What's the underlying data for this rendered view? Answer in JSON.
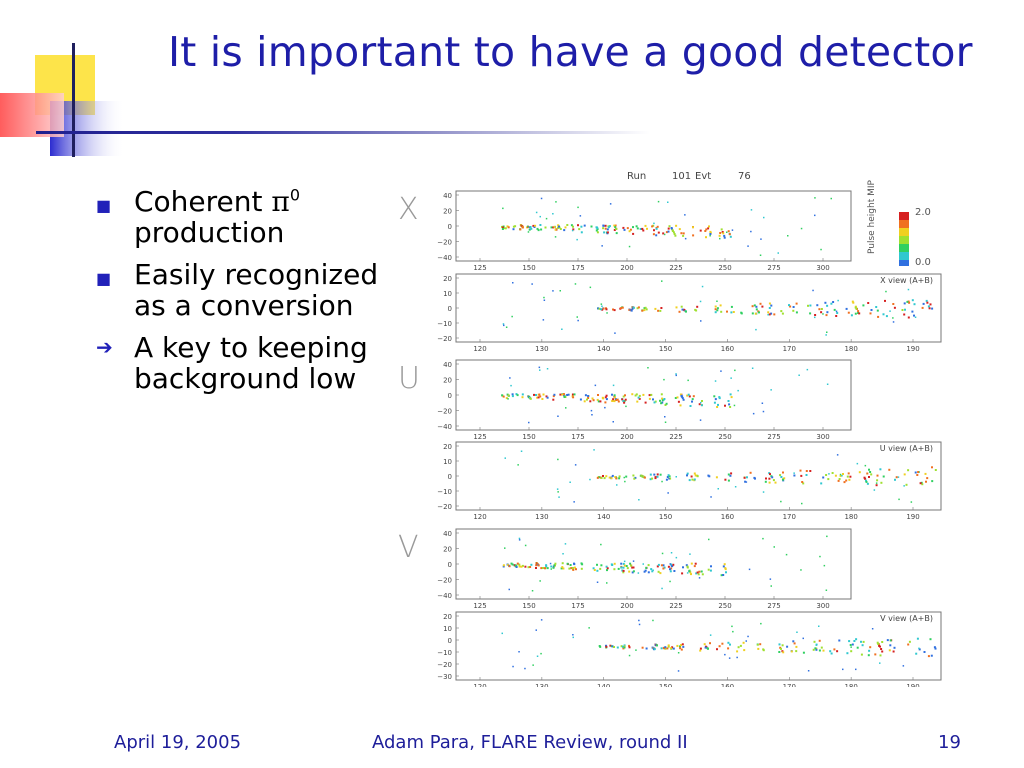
{
  "title": "It is important to have a good detector",
  "bullets": [
    {
      "marker": "square-icon",
      "text": "Coherent ",
      "symbol": "π",
      "sup": "0",
      "text2": " production"
    },
    {
      "marker": "square-icon",
      "text": "Easily recognized as a conversion"
    },
    {
      "marker": "arrow-icon",
      "text": "A key to keeping background low"
    }
  ],
  "event_display": {
    "header_run_label": "Run",
    "header_run_value": "101",
    "header_evt_label": "Evt",
    "header_evt_value": "76",
    "legend_title": "Pulse height MIP",
    "legend_max": "2.0",
    "legend_min": "0.0",
    "panels": [
      {
        "view_letter": "X",
        "label": "",
        "y_ticks": [
          "40",
          "20",
          "0",
          "−20",
          "−40"
        ],
        "x_ticks": [
          "125",
          "150",
          "175",
          "200",
          "225",
          "250",
          "275",
          "300"
        ]
      },
      {
        "view_letter": "",
        "label": "X view (A+B)",
        "y_ticks": [
          "20",
          "10",
          "0",
          "−10",
          "−20"
        ],
        "x_ticks": [
          "120",
          "130",
          "140",
          "150",
          "160",
          "170",
          "180",
          "190"
        ]
      },
      {
        "view_letter": "U",
        "label": "",
        "y_ticks": [
          "40",
          "20",
          "0",
          "−20",
          "−40"
        ],
        "x_ticks": [
          "125",
          "150",
          "175",
          "200",
          "225",
          "250",
          "275",
          "300"
        ]
      },
      {
        "view_letter": "",
        "label": "U view (A+B)",
        "y_ticks": [
          "20",
          "10",
          "0",
          "−10",
          "−20"
        ],
        "x_ticks": [
          "120",
          "130",
          "140",
          "150",
          "160",
          "170",
          "180",
          "190"
        ]
      },
      {
        "view_letter": "V",
        "label": "",
        "y_ticks": [
          "40",
          "20",
          "0",
          "−20",
          "−40"
        ],
        "x_ticks": [
          "125",
          "150",
          "175",
          "200",
          "225",
          "250",
          "275",
          "300"
        ]
      },
      {
        "view_letter": "",
        "label": "V view (A+B)",
        "y_ticks": [
          "20",
          "10",
          "0",
          "−10",
          "−20",
          "−30"
        ],
        "x_ticks": [
          "120",
          "130",
          "140",
          "150",
          "160",
          "170",
          "180",
          "190"
        ]
      }
    ]
  },
  "footer": {
    "date": "April 19, 2005",
    "center": "Adam Para, FLARE Review, round II",
    "page": "19"
  },
  "colors": {
    "title": "#1e1ea8",
    "bullet": "#2121b9",
    "deco_yellow": "#fde44a",
    "deco_red": "#ff5a5a",
    "deco_blue": "#2b2bd0"
  }
}
